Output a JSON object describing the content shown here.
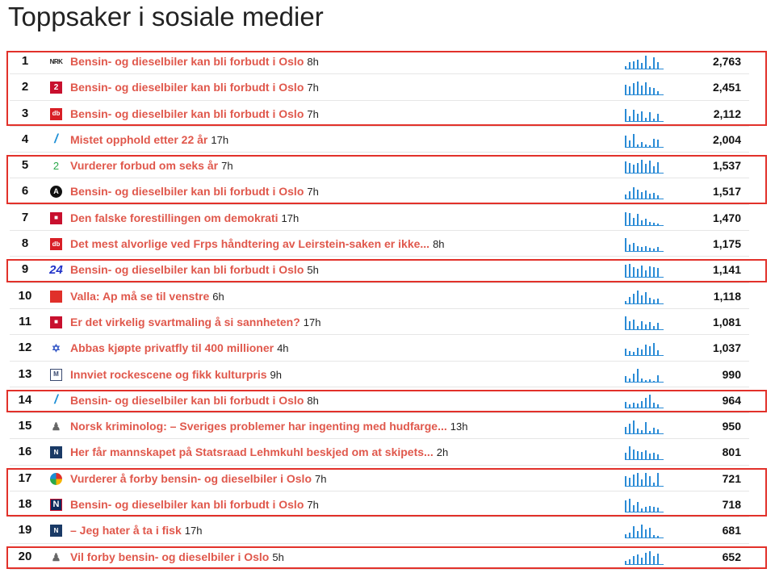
{
  "page": {
    "title": "Toppsaker i sosiale medier"
  },
  "colors": {
    "headline": "#e0584c",
    "spark": "#2a8bd6",
    "highlight": "#e2312a"
  },
  "rows": [
    {
      "rank": "1",
      "icon": "nrk",
      "icon_text": "NRK",
      "headline": "Bensin- og dieselbiler kan bli forbudt i Oslo",
      "age": "8h",
      "count": "2,763",
      "spark": [
        3,
        8,
        9,
        11,
        7,
        16,
        3,
        14,
        8
      ]
    },
    {
      "rank": "2",
      "icon": "tv2",
      "icon_text": "2",
      "headline": "Bensin- og dieselbiler kan bli forbudt i Oslo",
      "age": "7h",
      "count": "2,451",
      "spark": [
        12,
        10,
        14,
        16,
        11,
        15,
        9,
        8,
        4
      ]
    },
    {
      "rank": "3",
      "icon": "db",
      "icon_text": "db",
      "headline": "Bensin- og dieselbiler kan bli forbudt i Oslo",
      "age": "7h",
      "count": "2,112",
      "spark": [
        15,
        6,
        14,
        9,
        12,
        4,
        11,
        3,
        9
      ]
    },
    {
      "rank": "4",
      "icon": "slash",
      "icon_text": "/",
      "headline": "Mistet opphold etter 22 år",
      "age": "17h",
      "count": "2,004",
      "spark": [
        14,
        8,
        16,
        3,
        6,
        3,
        2,
        10,
        9
      ]
    },
    {
      "rank": "5",
      "icon": "two",
      "icon_text": "2",
      "headline": "Vurderer forbud om seks år",
      "age": "7h",
      "count": "1,537",
      "spark": [
        14,
        12,
        10,
        12,
        16,
        11,
        15,
        8,
        13
      ]
    },
    {
      "rank": "6",
      "icon": "a",
      "icon_text": "A",
      "headline": "Bensin- og dieselbiler kan bli forbudt i Oslo",
      "age": "7h",
      "count": "1,517",
      "spark": [
        5,
        9,
        14,
        11,
        8,
        10,
        6,
        7,
        4
      ]
    },
    {
      "rank": "7",
      "icon": "flag",
      "icon_text": "■",
      "headline": "Den falske forestillingen om demokrati",
      "age": "17h",
      "count": "1,470",
      "spark": [
        16,
        15,
        9,
        14,
        6,
        8,
        4,
        3,
        2
      ]
    },
    {
      "rank": "8",
      "icon": "db",
      "icon_text": "db",
      "headline": "Det mest alvorlige ved Frps håndtering av Leirstein-saken er ikke...",
      "age": "8h",
      "count": "1,175",
      "spark": [
        16,
        8,
        10,
        6,
        5,
        6,
        4,
        3,
        5
      ]
    },
    {
      "rank": "9",
      "icon": "n24",
      "icon_text": "24",
      "headline": "Bensin- og dieselbiler kan bli forbudt i Oslo",
      "age": "5h",
      "count": "1,141",
      "spark": [
        15,
        16,
        12,
        10,
        14,
        8,
        13,
        12,
        11
      ]
    },
    {
      "rank": "10",
      "icon": "bar",
      "icon_text": "",
      "headline": "Valla: Ap må se til venstre",
      "age": "6h",
      "count": "1,118",
      "spark": [
        3,
        8,
        12,
        16,
        10,
        14,
        7,
        5,
        6
      ]
    },
    {
      "rank": "11",
      "icon": "flag",
      "icon_text": "■",
      "headline": "Er det virkelig svartmaling å si sannheten?",
      "age": "17h",
      "count": "1,081",
      "spark": [
        16,
        10,
        12,
        4,
        10,
        6,
        9,
        4,
        8
      ]
    },
    {
      "rank": "12",
      "icon": "star",
      "icon_text": "✡",
      "headline": "Abbas kjøpte privatfly til 400 millioner",
      "age": "4h",
      "count": "1,037",
      "spark": [
        8,
        5,
        4,
        9,
        7,
        13,
        11,
        15,
        6
      ]
    },
    {
      "rank": "13",
      "icon": "box",
      "icon_text": "M",
      "headline": "Innviet rockescene og fikk kulturpris",
      "age": "9h",
      "count": "990",
      "spark": [
        7,
        4,
        10,
        16,
        4,
        2,
        3,
        1,
        8
      ]
    },
    {
      "rank": "14",
      "icon": "slash",
      "icon_text": "/",
      "headline": "Bensin- og dieselbiler kan bli forbudt i Oslo",
      "age": "8h",
      "count": "964",
      "spark": [
        7,
        4,
        6,
        5,
        8,
        12,
        16,
        6,
        4
      ]
    },
    {
      "rank": "15",
      "icon": "person",
      "icon_text": "♟",
      "headline": "Norsk kriminolog: – Sveriges problemer har ingenting med hudfarge...",
      "age": "13h",
      "count": "950",
      "spark": [
        8,
        12,
        16,
        6,
        4,
        14,
        3,
        7,
        5
      ]
    },
    {
      "rank": "16",
      "icon": "dark",
      "icon_text": "N",
      "headline": "Her får mannskapet på Statsraad Lehmkuhl beskjed om at skipets...",
      "age": "2h",
      "count": "801",
      "spark": [
        8,
        16,
        12,
        10,
        9,
        11,
        7,
        8,
        6
      ]
    },
    {
      "rank": "17",
      "icon": "circle",
      "icon_text": "",
      "headline": "Vurderer å forby bensin- og dieselbiler i Oslo",
      "age": "7h",
      "count": "721",
      "spark": [
        12,
        10,
        14,
        16,
        8,
        16,
        12,
        4,
        16
      ]
    },
    {
      "rank": "18",
      "icon": "n",
      "icon_text": "N",
      "headline": "Bensin- og dieselbiler kan bli forbudt i Oslo",
      "age": "7h",
      "count": "718",
      "spark": [
        14,
        16,
        8,
        12,
        4,
        6,
        7,
        6,
        5
      ]
    },
    {
      "rank": "19",
      "icon": "dark",
      "icon_text": "N",
      "headline": "– Jeg hater å ta i fisk",
      "age": "17h",
      "count": "681",
      "spark": [
        4,
        6,
        14,
        8,
        16,
        10,
        12,
        3,
        2
      ]
    },
    {
      "rank": "20",
      "icon": "person",
      "icon_text": "♟",
      "headline": "Vil forby bensin- og dieselbiler i Oslo",
      "age": "5h",
      "count": "652",
      "spark": [
        4,
        6,
        10,
        12,
        8,
        14,
        16,
        10,
        13
      ]
    }
  ],
  "highlight_groups": [
    [
      1,
      3
    ],
    [
      5,
      6
    ],
    [
      9,
      9
    ],
    [
      14,
      14
    ],
    [
      17,
      18
    ],
    [
      20,
      20
    ]
  ]
}
